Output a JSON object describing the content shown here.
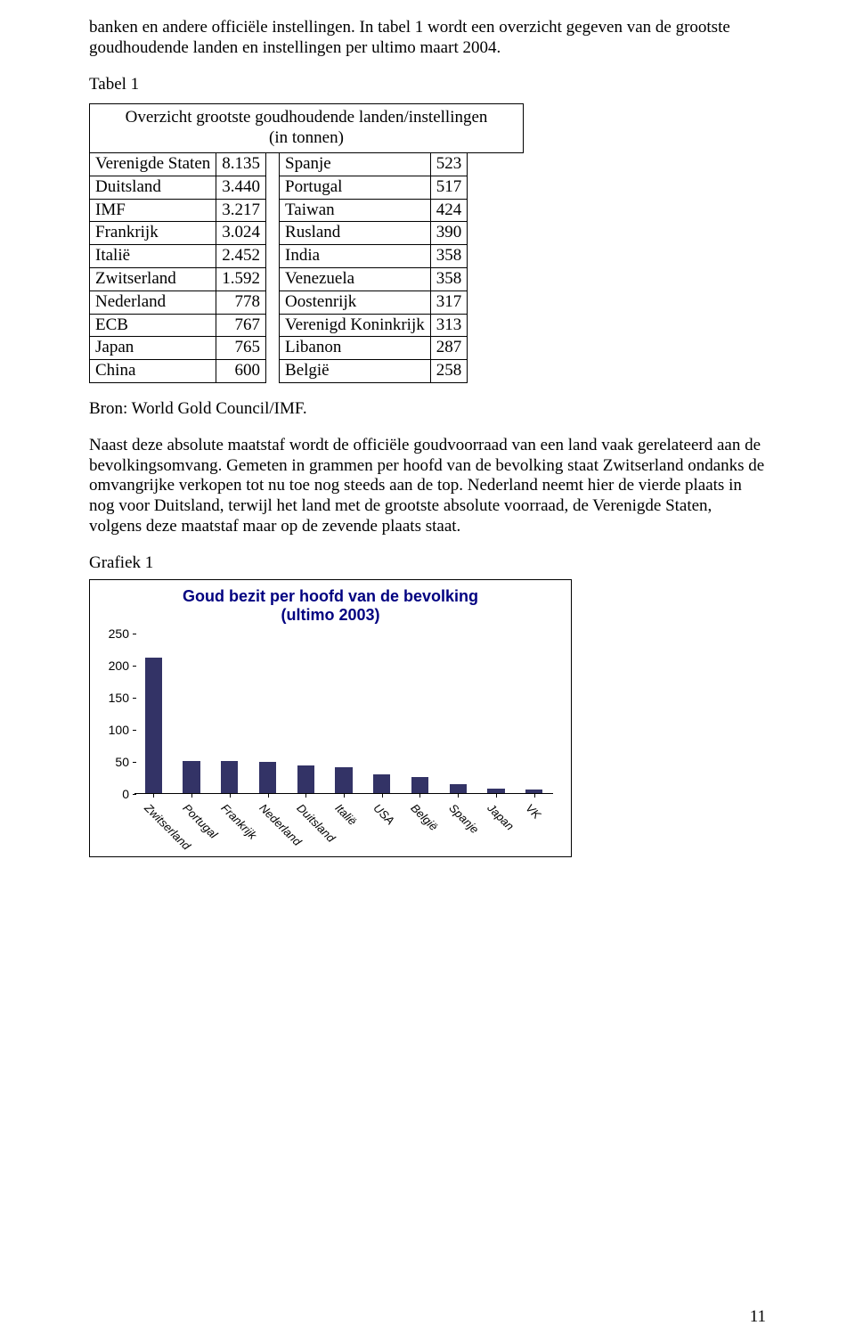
{
  "para1": "banken en andere officiële instellingen. In tabel 1 wordt een overzicht gegeven van de grootste goudhoudende landen en instellingen per ultimo maart 2004.",
  "tabel_label": "Tabel 1",
  "table_title_line1": "Overzicht grootste goudhoudende landen/instellingen",
  "table_title_line2": "(in tonnen)",
  "table": {
    "left": [
      {
        "name": "Verenigde Staten",
        "val": "8.135"
      },
      {
        "name": "Duitsland",
        "val": "3.440"
      },
      {
        "name": "IMF",
        "val": "3.217"
      },
      {
        "name": "Frankrijk",
        "val": "3.024"
      },
      {
        "name": "Italië",
        "val": "2.452"
      },
      {
        "name": "Zwitserland",
        "val": "1.592"
      },
      {
        "name": "Nederland",
        "val": "778"
      },
      {
        "name": "ECB",
        "val": "767"
      },
      {
        "name": "Japan",
        "val": "765"
      },
      {
        "name": "China",
        "val": "600"
      }
    ],
    "right": [
      {
        "name": "Spanje",
        "val": "523"
      },
      {
        "name": "Portugal",
        "val": "517"
      },
      {
        "name": "Taiwan",
        "val": "424"
      },
      {
        "name": "Rusland",
        "val": "390"
      },
      {
        "name": "India",
        "val": "358"
      },
      {
        "name": "Venezuela",
        "val": "358"
      },
      {
        "name": "Oostenrijk",
        "val": "317"
      },
      {
        "name": "Verenigd Koninkrijk",
        "val": "313"
      },
      {
        "name": "Libanon",
        "val": "287"
      },
      {
        "name": "België",
        "val": "258"
      }
    ]
  },
  "bron": "Bron: World Gold Council/IMF.",
  "para2": "Naast deze absolute maatstaf wordt de officiële  goudvoorraad van een land vaak gerelateerd aan de bevolkingsomvang. Gemeten in grammen per hoofd van de bevolking staat Zwitserland ondanks de omvangrijke verkopen tot nu toe nog steeds aan de top. Nederland neemt hier de vierde plaats in nog voor Duitsland, terwijl het land met de grootste absolute voorraad, de Verenigde Staten, volgens deze maatstaf maar op de zevende plaats staat.",
  "grafiek_label": "Grafiek 1",
  "chart": {
    "type": "bar",
    "title_line1": "Goud bezit per hoofd van de bevolking",
    "title_line2": "(ultimo 2003)",
    "title_color": "#000080",
    "title_fontsize": 18,
    "label_fontsize": 14,
    "ylim_max": 250,
    "ytick_step": 50,
    "y_ticks": [
      "0",
      "50",
      "100",
      "150",
      "200",
      "250"
    ],
    "bar_color": "#333366",
    "background_color": "#ffffff",
    "bar_width_ratio": 0.45,
    "categories": [
      "Zwitserland",
      "Portugal",
      "Frankrijk",
      "Nederland",
      "Duitsland",
      "Italië",
      "USA",
      "België",
      "Spanje",
      "Japan",
      "VK"
    ],
    "values": [
      210,
      50,
      50,
      48,
      42,
      40,
      28,
      25,
      13,
      6,
      5
    ]
  },
  "page_number": "11"
}
